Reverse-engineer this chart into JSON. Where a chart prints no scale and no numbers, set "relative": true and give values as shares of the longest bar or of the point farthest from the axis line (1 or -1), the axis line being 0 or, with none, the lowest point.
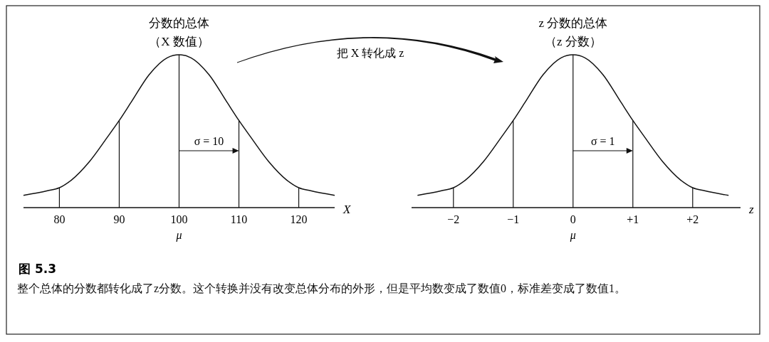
{
  "chart_data": [
    {
      "type": "line",
      "title": "分数的总体",
      "subtitle": "（X 数值）",
      "xlabel": "X",
      "relative": true,
      "xlim": [
        74,
        126
      ],
      "xticks": [
        80,
        90,
        100,
        110,
        120
      ],
      "series": [
        {
          "color": "#111111",
          "x": [
            74,
            78,
            80,
            82,
            85,
            88,
            90,
            92,
            95,
            98,
            100,
            102,
            105,
            108,
            110,
            112,
            115,
            118,
            120,
            122,
            126
          ],
          "values": [
            0.08,
            0.11,
            0.13,
            0.18,
            0.3,
            0.46,
            0.57,
            0.69,
            0.87,
            0.98,
            1,
            0.98,
            0.87,
            0.69,
            0.57,
            0.46,
            0.3,
            0.18,
            0.13,
            0.11,
            0.08
          ]
        }
      ],
      "ref_lines": [
        {
          "axis": "x",
          "value": 80
        },
        {
          "axis": "x",
          "value": 90
        },
        {
          "axis": "x",
          "value": 100
        },
        {
          "axis": "x",
          "value": 110
        },
        {
          "axis": "x",
          "value": 120
        }
      ],
      "annotations": [
        "σ = 10",
        "μ",
        "把 X 转化成 z"
      ]
    },
    {
      "type": "line",
      "title": "z 分数的总体",
      "subtitle": "（z 分数）",
      "xlabel": "z",
      "relative": true,
      "xlim": [
        -2.7,
        2.8
      ],
      "xticks": [
        {
          "value": -2,
          "label": "−2"
        },
        {
          "value": -1,
          "label": "−1"
        },
        0,
        {
          "value": 1,
          "label": "+1"
        },
        {
          "value": 2,
          "label": "+2"
        }
      ],
      "series": [
        {
          "color": "#111111",
          "x": [
            -2.6,
            -2.2,
            -2,
            -1.8,
            -1.5,
            -1.2,
            -1,
            -0.8,
            -0.5,
            -0.2,
            0,
            0.2,
            0.5,
            0.8,
            1,
            1.2,
            1.5,
            1.8,
            2,
            2.2,
            2.6
          ],
          "values": [
            0.08,
            0.11,
            0.13,
            0.18,
            0.3,
            0.46,
            0.57,
            0.69,
            0.87,
            0.98,
            1,
            0.98,
            0.87,
            0.69,
            0.57,
            0.46,
            0.3,
            0.18,
            0.13,
            0.11,
            0.08
          ]
        }
      ],
      "ref_lines": [
        {
          "axis": "x",
          "value": -2
        },
        {
          "axis": "x",
          "value": -1
        },
        {
          "axis": "x",
          "value": 0
        },
        {
          "axis": "x",
          "value": 1
        },
        {
          "axis": "x",
          "value": 2
        }
      ],
      "annotations": [
        "σ = 1",
        "μ"
      ]
    },
    {
      "type": "other",
      "title": "图 5.3",
      "annotations": [
        "整个总体的分数都转化成了z分数。这个转换并没有改变总体分布的外形，但是平均数变成了数值0，标准差变成了数值1。"
      ]
    }
  ]
}
